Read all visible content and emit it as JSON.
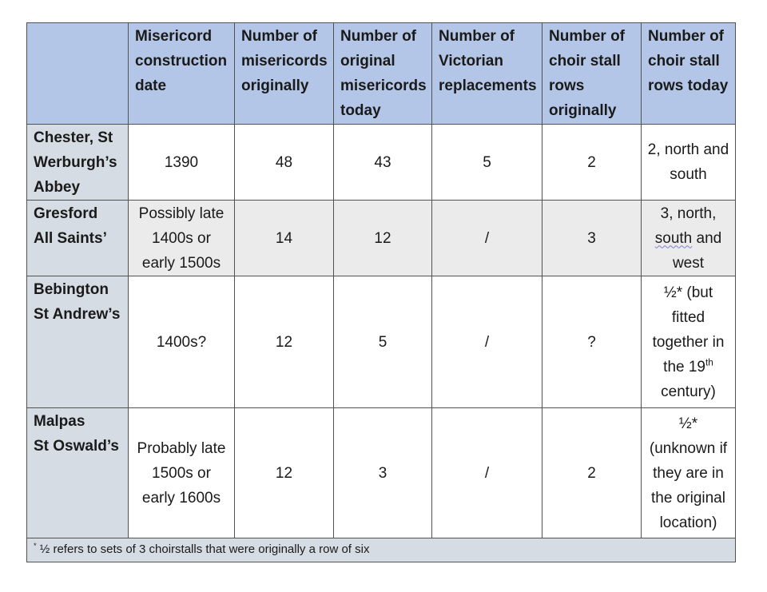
{
  "table": {
    "colors": {
      "header_bg": "#b4c6e7",
      "rowheader_bg": "#d6dce4",
      "shaded_bg": "#ebebeb",
      "border": "#525252",
      "text": "#1a1a1a",
      "spellcheck": "#7b7fd0"
    },
    "header": [
      "",
      "Misericord\nconstruction\ndate",
      "Number of\nmisericords\noriginally",
      "Number of\noriginal\nmisericords\ntoday",
      "Number of\nVictorian\nreplacements",
      "Number of\nchoir stall\nrows\noriginally",
      "Number of\nchoir stall\nrows today"
    ],
    "rows": [
      {
        "name": "Chester, St\nWerburgh’s\nAbbey",
        "cells": [
          "1390",
          "48",
          "43",
          "5",
          "2",
          "2, north and\nsouth"
        ]
      },
      {
        "name": "Gresford\nAll Saints’",
        "cells": [
          "Possibly late\n1400s or\nearly 1500s",
          "14",
          "12",
          "/",
          "3",
          "3, north,\n[wavy]south[/wavy] and\nwest"
        ]
      },
      {
        "name": "Bebington\nSt Andrew’s",
        "cells": [
          "1400s?",
          "12",
          "5",
          "/",
          "?",
          "½* (but\nfitted\ntogether in\nthe 19[sup]th[/sup]\ncentury)"
        ]
      },
      {
        "name": "Malpas\nSt Oswald’s",
        "cells": [
          "Probably late\n1500s or\nearly 1600s",
          "12",
          "3",
          "/",
          "2",
          "½*\n(unknown if\nthey are in\nthe original\nlocation)"
        ]
      }
    ],
    "footnote": "[sup]*[/sup] ½ refers to sets of 3 choirstalls that were originally a row of six"
  }
}
